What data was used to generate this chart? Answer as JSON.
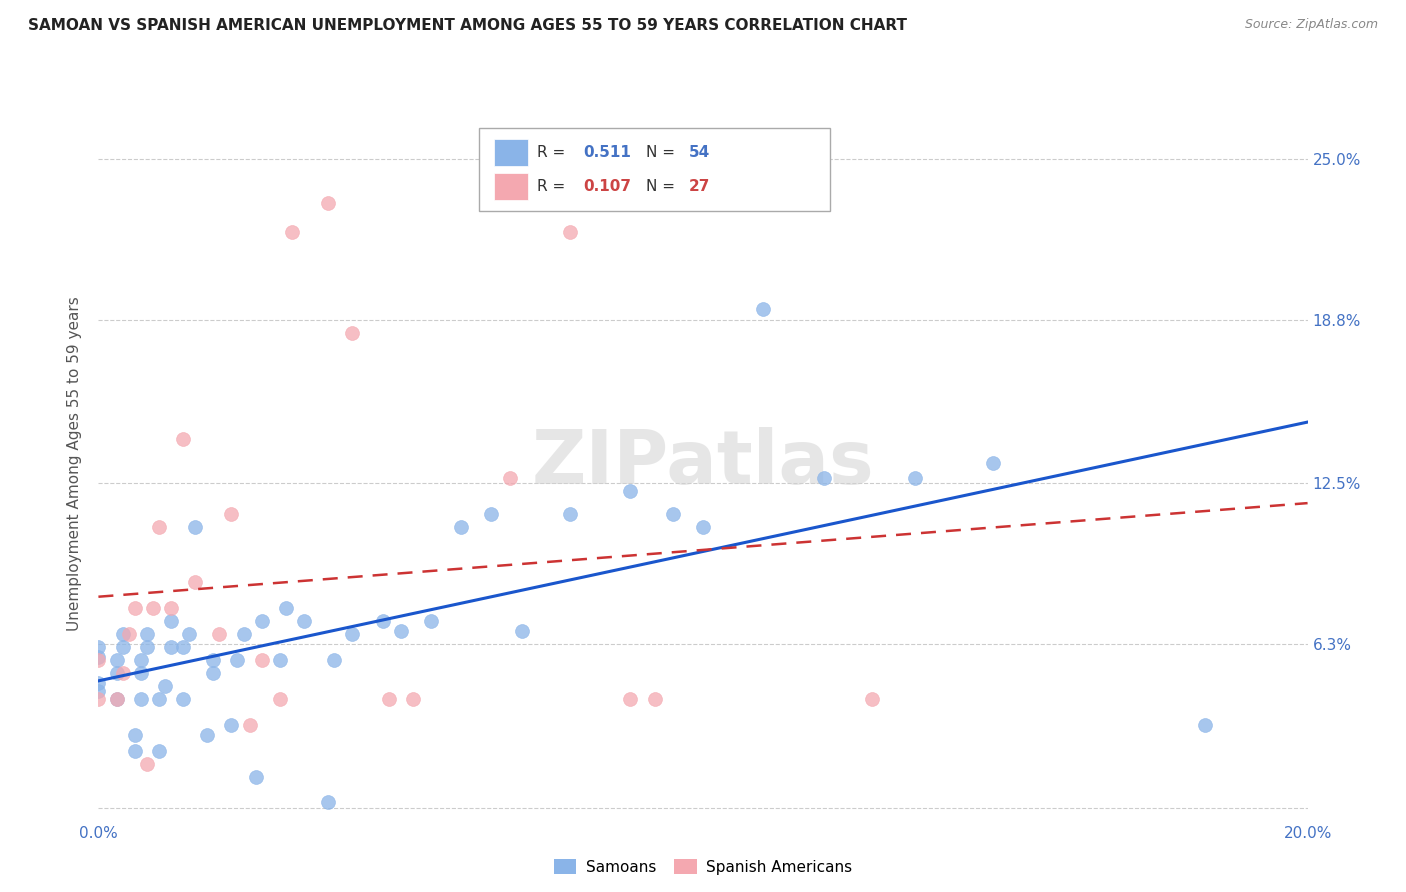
{
  "title": "SAMOAN VS SPANISH AMERICAN UNEMPLOYMENT AMONG AGES 55 TO 59 YEARS CORRELATION CHART",
  "source": "Source: ZipAtlas.com",
  "ylabel": "Unemployment Among Ages 55 to 59 years",
  "xlim": [
    0.0,
    0.2
  ],
  "ylim": [
    -0.005,
    0.27
  ],
  "yticks": [
    0.0,
    0.063,
    0.125,
    0.188,
    0.25
  ],
  "ytick_labels": [
    "",
    "6.3%",
    "12.5%",
    "18.8%",
    "25.0%"
  ],
  "xticks": [
    0.0,
    0.04,
    0.08,
    0.12,
    0.16,
    0.2
  ],
  "xtick_labels": [
    "0.0%",
    "",
    "",
    "",
    "",
    "20.0%"
  ],
  "samoan_color": "#8ab4e8",
  "spanish_color": "#f4a8b0",
  "samoan_line_color": "#1a56cc",
  "spanish_line_color": "#cc3333",
  "R_samoan": "0.511",
  "N_samoan": "54",
  "R_spanish": "0.107",
  "N_spanish": "27",
  "watermark": "ZIPatlas",
  "background_color": "#ffffff",
  "tick_color": "#4472c4",
  "samoan_x": [
    0.0,
    0.0,
    0.0,
    0.0,
    0.003,
    0.003,
    0.003,
    0.004,
    0.004,
    0.006,
    0.006,
    0.007,
    0.007,
    0.007,
    0.008,
    0.008,
    0.01,
    0.01,
    0.011,
    0.012,
    0.012,
    0.014,
    0.014,
    0.015,
    0.016,
    0.018,
    0.019,
    0.019,
    0.022,
    0.023,
    0.024,
    0.026,
    0.027,
    0.03,
    0.031,
    0.034,
    0.038,
    0.039,
    0.042,
    0.047,
    0.05,
    0.055,
    0.06,
    0.065,
    0.07,
    0.078,
    0.088,
    0.095,
    0.1,
    0.11,
    0.12,
    0.135,
    0.148,
    0.183
  ],
  "samoan_y": [
    0.045,
    0.048,
    0.058,
    0.062,
    0.042,
    0.052,
    0.057,
    0.062,
    0.067,
    0.022,
    0.028,
    0.042,
    0.052,
    0.057,
    0.062,
    0.067,
    0.022,
    0.042,
    0.047,
    0.062,
    0.072,
    0.042,
    0.062,
    0.067,
    0.108,
    0.028,
    0.052,
    0.057,
    0.032,
    0.057,
    0.067,
    0.012,
    0.072,
    0.057,
    0.077,
    0.072,
    0.002,
    0.057,
    0.067,
    0.072,
    0.068,
    0.072,
    0.108,
    0.113,
    0.068,
    0.113,
    0.122,
    0.113,
    0.108,
    0.192,
    0.127,
    0.127,
    0.133,
    0.032
  ],
  "spanish_x": [
    0.0,
    0.0,
    0.003,
    0.004,
    0.005,
    0.006,
    0.008,
    0.009,
    0.01,
    0.012,
    0.014,
    0.016,
    0.02,
    0.022,
    0.025,
    0.027,
    0.03,
    0.032,
    0.038,
    0.042,
    0.048,
    0.052,
    0.068,
    0.078,
    0.088,
    0.092,
    0.128
  ],
  "spanish_y": [
    0.042,
    0.057,
    0.042,
    0.052,
    0.067,
    0.077,
    0.017,
    0.077,
    0.108,
    0.077,
    0.142,
    0.087,
    0.067,
    0.113,
    0.032,
    0.057,
    0.042,
    0.222,
    0.233,
    0.183,
    0.042,
    0.042,
    0.127,
    0.222,
    0.042,
    0.042,
    0.042
  ]
}
